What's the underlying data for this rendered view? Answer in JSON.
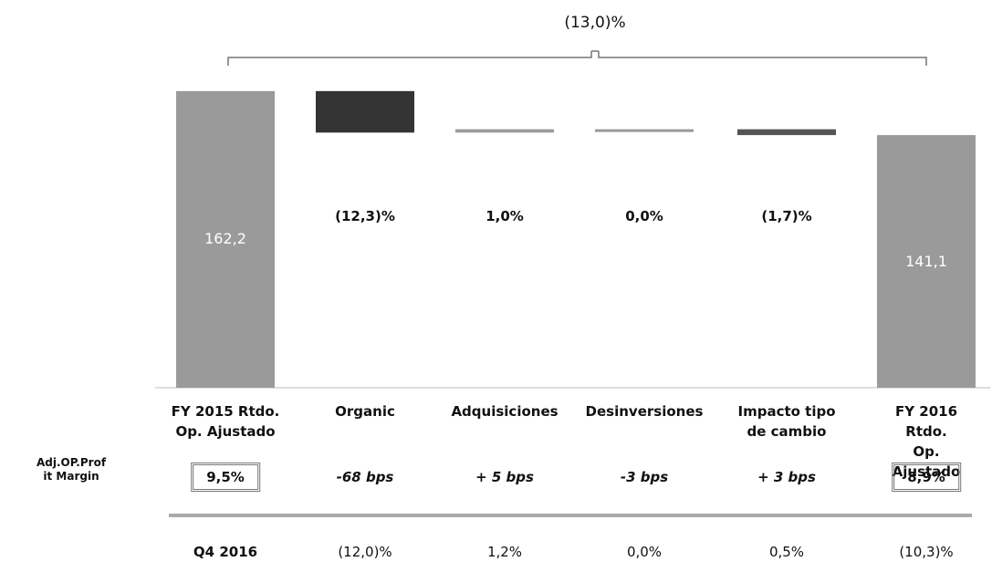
{
  "chart_data": {
    "type": "waterfall",
    "bracket_label": "(13,0)%",
    "categories": [
      "FY 2015 Rtdo.\nOp. Ajustado",
      "Organic",
      "Adquisiciones",
      "Desinversiones",
      "Impacto tipo\nde cambio",
      "FY 2016 Rtdo.\nOp. Ajustado"
    ],
    "measure": [
      "absolute",
      "relative",
      "relative",
      "relative",
      "relative",
      "absolute"
    ],
    "values": [
      162.2,
      -19.9,
      1.6,
      0,
      -2.8,
      141.1
    ],
    "value_labels": [
      "162,2",
      null,
      null,
      null,
      null,
      "141,1"
    ],
    "change_labels": [
      null,
      "(12,3)%",
      "1,0%",
      "0,0%",
      "(1,7)%",
      null
    ],
    "colors": [
      "#9a9a9a",
      "#333333",
      "#9a9a9a",
      "#9a9a9a",
      "#555555",
      "#9a9a9a"
    ],
    "ylim": [
      20,
      170
    ],
    "margin_row": {
      "label": "Adj.OP.Prof\nit Margin",
      "values": [
        "9,5%",
        "-68 bps",
        "+ 5 bps",
        "-3 bps",
        "+ 3 bps",
        "8,9%"
      ],
      "boxed": [
        true,
        false,
        false,
        false,
        false,
        true
      ]
    },
    "q4_row": {
      "label": "Q4 2016",
      "values": [
        "(12,0)%",
        "1,2%",
        "0,0%",
        "0,5%",
        "(10,3)%"
      ]
    }
  }
}
